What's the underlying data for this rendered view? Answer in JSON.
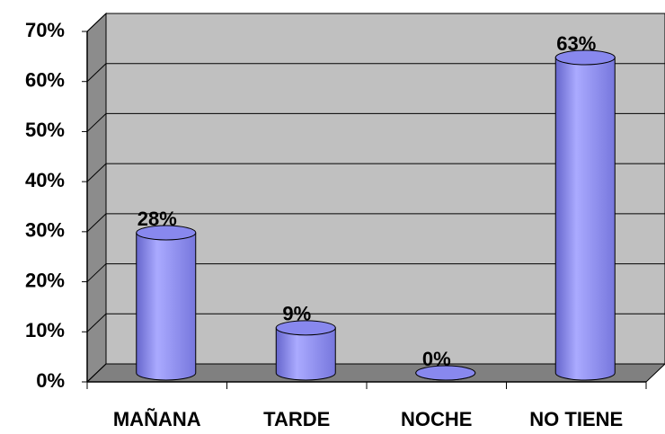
{
  "chart_data": {
    "type": "bar3d",
    "categories": [
      "MAÑANA",
      "TARDE",
      "NOCHE",
      "NO TIENE"
    ],
    "values": [
      28,
      9,
      0,
      63
    ],
    "value_labels": [
      "28%",
      "9%",
      "0%",
      "63%"
    ],
    "color": "#9999ff",
    "ylim": [
      0,
      70
    ],
    "yticks": [
      {
        "value": 0,
        "label": "0%"
      },
      {
        "value": 10,
        "label": "10%"
      },
      {
        "value": 20,
        "label": "20%"
      },
      {
        "value": 30,
        "label": "30%"
      },
      {
        "value": 40,
        "label": "40%"
      },
      {
        "value": 50,
        "label": "50%"
      },
      {
        "value": 60,
        "label": "60%"
      },
      {
        "value": 70,
        "label": "70%"
      }
    ],
    "grid": true
  }
}
